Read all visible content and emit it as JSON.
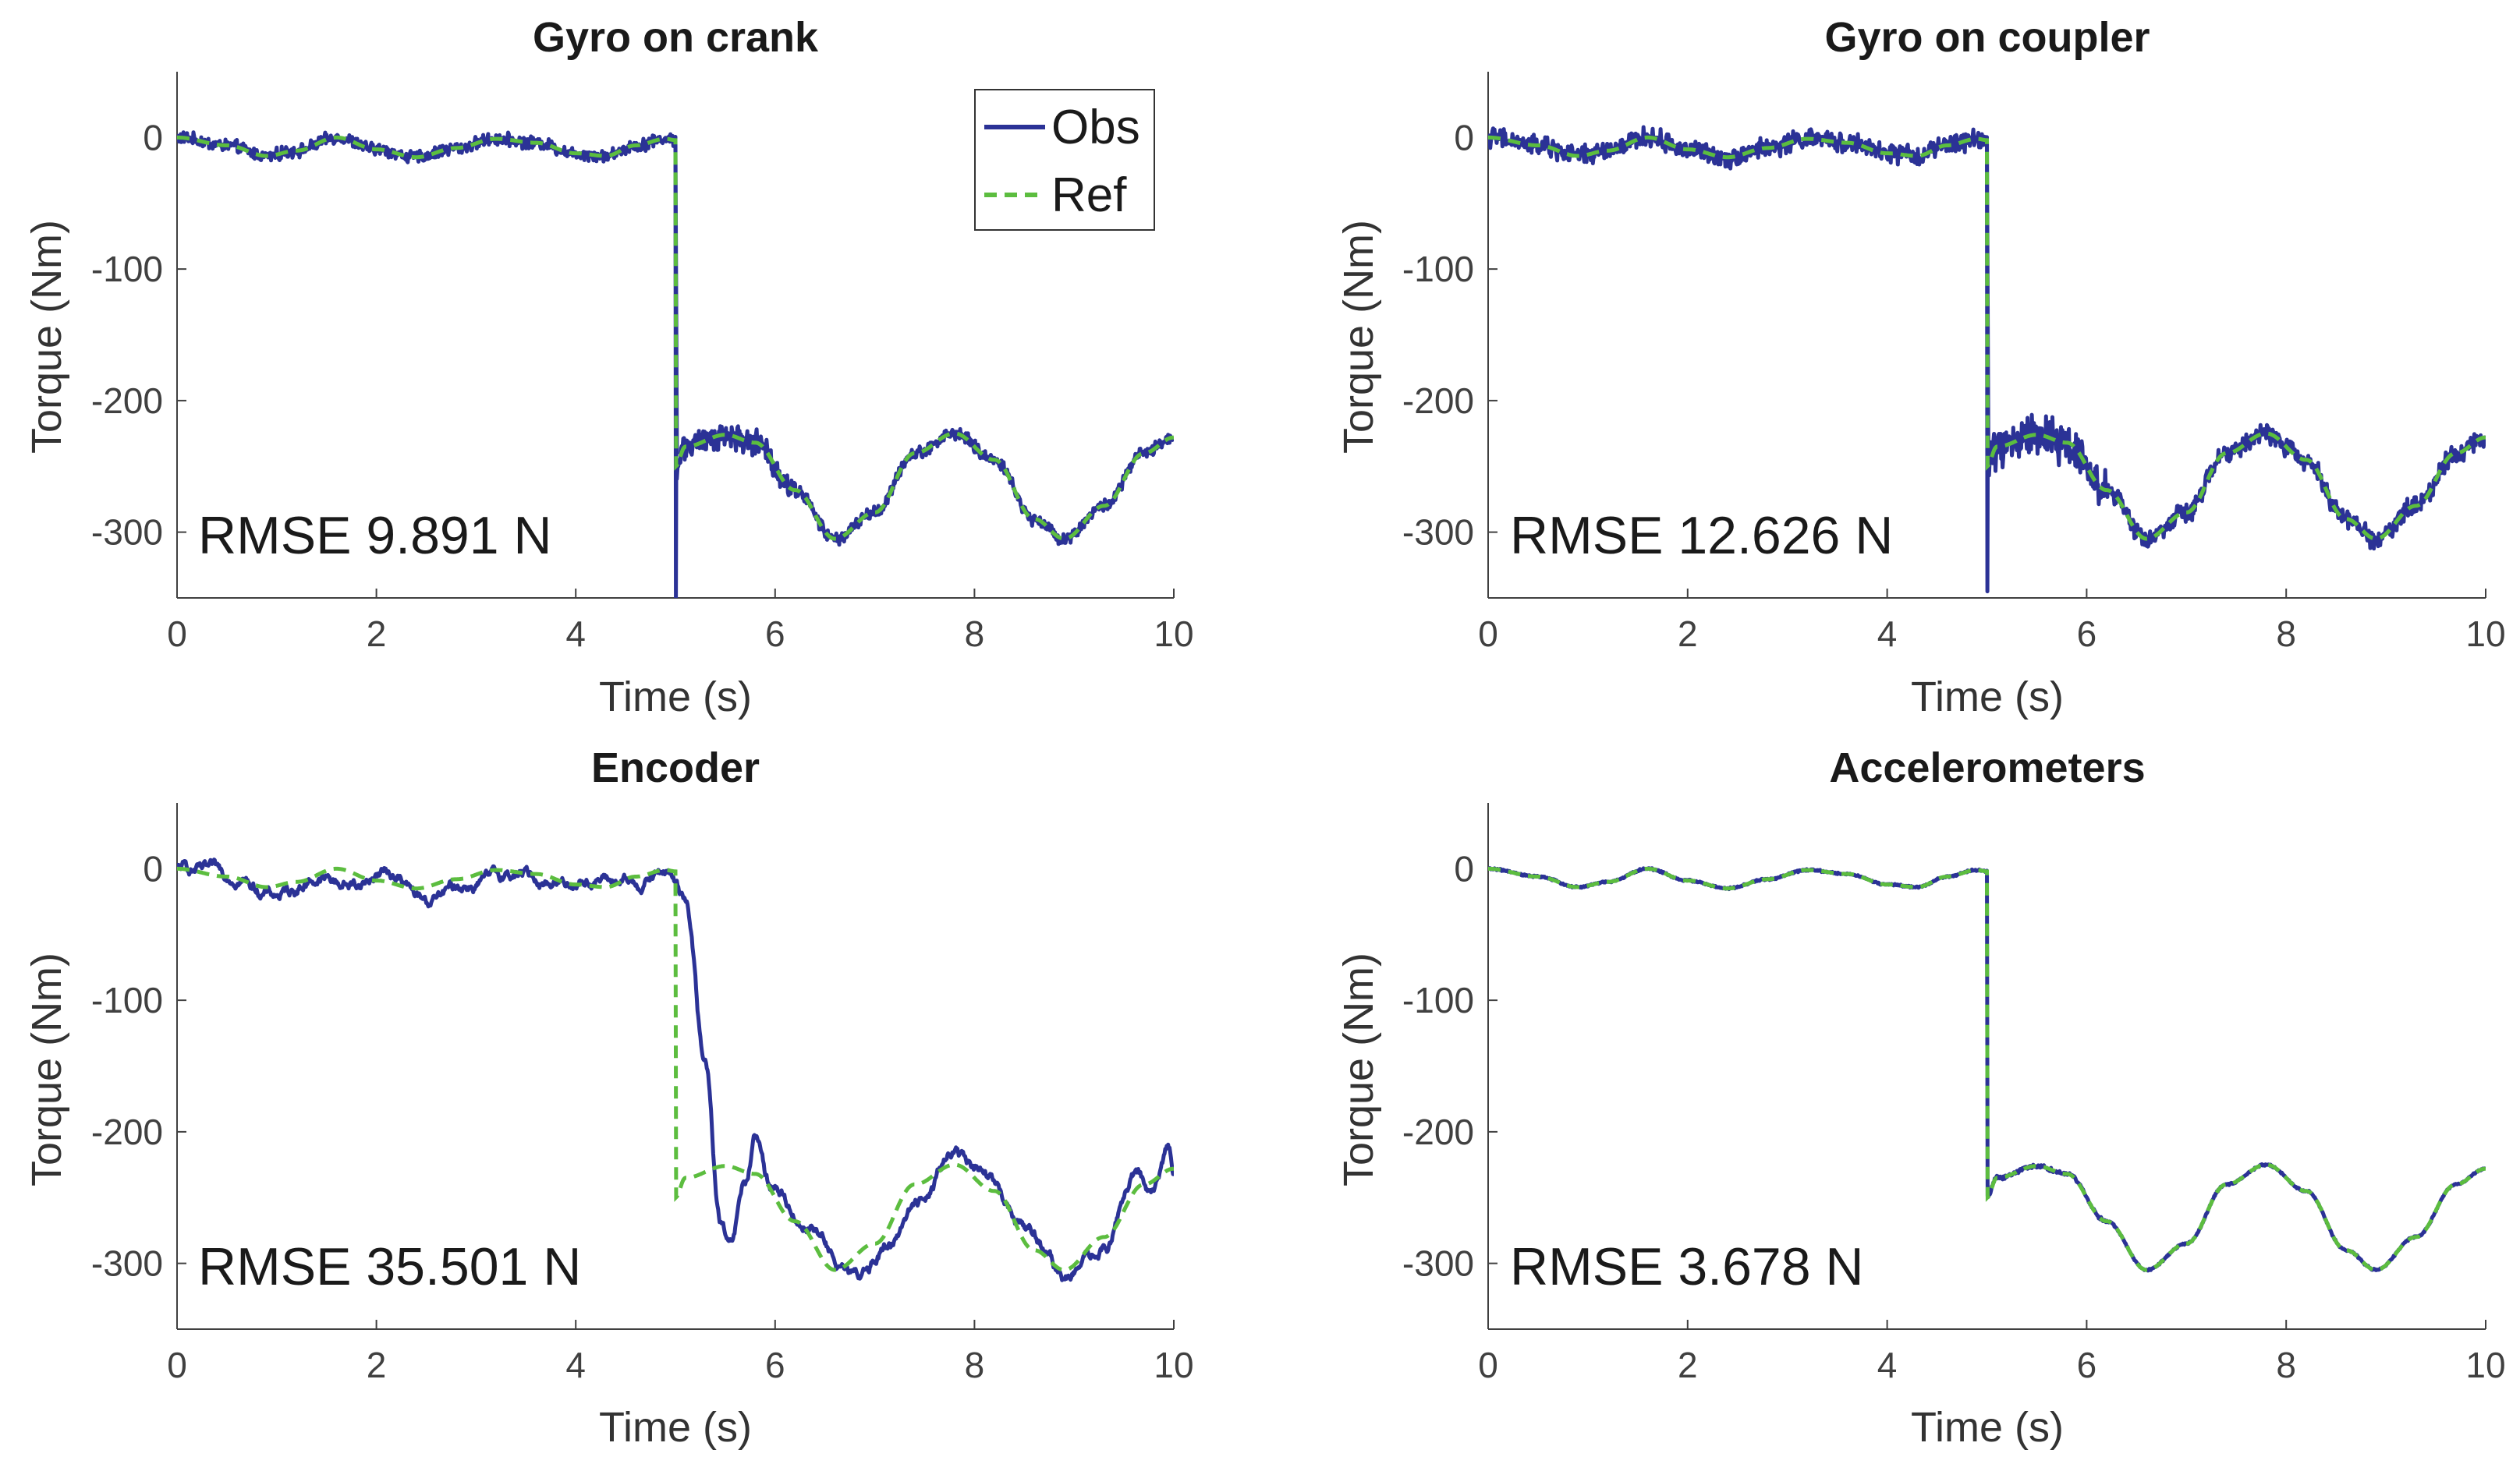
{
  "colors": {
    "obs": "#2b3296",
    "ref": "#5cbd3f",
    "axis": "#404040"
  },
  "legend": {
    "obs_label": "Obs",
    "ref_label": "Ref",
    "location": "top-right of first panel"
  },
  "chart_data": [
    {
      "type": "line",
      "title": "Gyro on crank",
      "xlabel": "Time (s)",
      "ylabel": "Torque (Nm)",
      "xlim": [
        0,
        10
      ],
      "ylim": [
        -350,
        50
      ],
      "xticks": [
        0,
        2,
        4,
        6,
        8,
        10
      ],
      "yticks": [
        0,
        -100,
        -200,
        -300
      ],
      "annotation": "RMSE 9.891 N",
      "noise": 7,
      "spike": -350,
      "lag": 0,
      "drift": 0,
      "series": [
        {
          "name": "Obs",
          "style": "solid"
        },
        {
          "name": "Ref",
          "style": "dashed"
        }
      ],
      "ref_points": [
        [
          0,
          0
        ],
        [
          0.5,
          -6
        ],
        [
          0.9,
          -14
        ],
        [
          1.2,
          -10
        ],
        [
          1.6,
          0
        ],
        [
          2.0,
          -9
        ],
        [
          2.4,
          -15
        ],
        [
          2.8,
          -8
        ],
        [
          3.2,
          -1
        ],
        [
          3.6,
          -4
        ],
        [
          4.0,
          -12
        ],
        [
          4.3,
          -14
        ],
        [
          4.6,
          -6
        ],
        [
          4.9,
          -1
        ],
        [
          5.0,
          -2
        ],
        [
          5.0,
          -250
        ],
        [
          5.1,
          -235
        ],
        [
          5.5,
          -226
        ],
        [
          5.8,
          -232
        ],
        [
          6.2,
          -268
        ],
        [
          6.6,
          -305
        ],
        [
          7.0,
          -285
        ],
        [
          7.4,
          -240
        ],
        [
          7.8,
          -225
        ],
        [
          8.2,
          -245
        ],
        [
          8.6,
          -290
        ],
        [
          8.9,
          -305
        ],
        [
          9.3,
          -280
        ],
        [
          9.7,
          -240
        ],
        [
          10.0,
          -228
        ]
      ]
    },
    {
      "type": "line",
      "title": "Gyro on coupler",
      "xlabel": "Time (s)",
      "ylabel": "Torque (Nm)",
      "xlim": [
        0,
        10
      ],
      "ylim": [
        -350,
        50
      ],
      "xticks": [
        0,
        2,
        4,
        6,
        8,
        10
      ],
      "yticks": [
        0,
        -100,
        -200,
        -300
      ],
      "annotation": "RMSE 12.626 N",
      "noise": 11,
      "spike": -345,
      "lag": 0,
      "drift": 0,
      "series": [
        {
          "name": "Obs",
          "style": "solid"
        },
        {
          "name": "Ref",
          "style": "dashed"
        }
      ],
      "ref_points": [
        [
          0,
          0
        ],
        [
          0.5,
          -6
        ],
        [
          0.9,
          -14
        ],
        [
          1.2,
          -10
        ],
        [
          1.6,
          0
        ],
        [
          2.0,
          -9
        ],
        [
          2.4,
          -15
        ],
        [
          2.8,
          -8
        ],
        [
          3.2,
          -1
        ],
        [
          3.6,
          -4
        ],
        [
          4.0,
          -12
        ],
        [
          4.3,
          -14
        ],
        [
          4.6,
          -6
        ],
        [
          4.9,
          -1
        ],
        [
          5.0,
          -2
        ],
        [
          5.0,
          -250
        ],
        [
          5.1,
          -235
        ],
        [
          5.5,
          -226
        ],
        [
          5.8,
          -232
        ],
        [
          6.2,
          -268
        ],
        [
          6.6,
          -305
        ],
        [
          7.0,
          -285
        ],
        [
          7.4,
          -240
        ],
        [
          7.8,
          -225
        ],
        [
          8.2,
          -245
        ],
        [
          8.6,
          -290
        ],
        [
          8.9,
          -305
        ],
        [
          9.3,
          -280
        ],
        [
          9.7,
          -240
        ],
        [
          10.0,
          -228
        ]
      ]
    },
    {
      "type": "line",
      "title": "Encoder",
      "xlabel": "Time (s)",
      "ylabel": "Torque (Nm)",
      "xlim": [
        0,
        10
      ],
      "ylim": [
        -350,
        50
      ],
      "xticks": [
        0,
        2,
        4,
        6,
        8,
        10
      ],
      "yticks": [
        0,
        -100,
        -200,
        -300
      ],
      "annotation": "RMSE 35.501 N",
      "noise": 5,
      "spike": null,
      "lag": 0.25,
      "drift": 12,
      "series": [
        {
          "name": "Obs",
          "style": "solid"
        },
        {
          "name": "Ref",
          "style": "dashed"
        }
      ],
      "ref_points": [
        [
          0,
          0
        ],
        [
          0.5,
          -6
        ],
        [
          0.9,
          -14
        ],
        [
          1.2,
          -10
        ],
        [
          1.6,
          0
        ],
        [
          2.0,
          -9
        ],
        [
          2.4,
          -15
        ],
        [
          2.8,
          -8
        ],
        [
          3.2,
          -1
        ],
        [
          3.6,
          -4
        ],
        [
          4.0,
          -12
        ],
        [
          4.3,
          -14
        ],
        [
          4.6,
          -6
        ],
        [
          4.9,
          -1
        ],
        [
          5.0,
          -2
        ],
        [
          5.0,
          -250
        ],
        [
          5.1,
          -235
        ],
        [
          5.5,
          -226
        ],
        [
          5.8,
          -232
        ],
        [
          6.2,
          -268
        ],
        [
          6.6,
          -305
        ],
        [
          7.0,
          -285
        ],
        [
          7.4,
          -240
        ],
        [
          7.8,
          -225
        ],
        [
          8.2,
          -245
        ],
        [
          8.6,
          -290
        ],
        [
          8.9,
          -305
        ],
        [
          9.3,
          -280
        ],
        [
          9.7,
          -240
        ],
        [
          10.0,
          -228
        ]
      ],
      "obs_points": [
        [
          0,
          0
        ],
        [
          0.5,
          -4
        ],
        [
          1.0,
          -20
        ],
        [
          1.4,
          -8
        ],
        [
          1.8,
          -12
        ],
        [
          2.1,
          -2
        ],
        [
          2.5,
          -25
        ],
        [
          2.9,
          -12
        ],
        [
          3.4,
          -4
        ],
        [
          3.8,
          -10
        ],
        [
          4.2,
          -8
        ],
        [
          4.6,
          -12
        ],
        [
          4.9,
          -2
        ],
        [
          5.1,
          -20
        ],
        [
          5.3,
          -150
        ],
        [
          5.45,
          -270
        ],
        [
          5.55,
          -290
        ],
        [
          5.7,
          -240
        ],
        [
          5.8,
          -208
        ],
        [
          5.95,
          -240
        ],
        [
          6.3,
          -270
        ],
        [
          6.8,
          -312
        ],
        [
          7.1,
          -290
        ],
        [
          7.4,
          -255
        ],
        [
          7.8,
          -215
        ],
        [
          8.1,
          -235
        ],
        [
          8.5,
          -270
        ],
        [
          8.9,
          -310
        ],
        [
          9.3,
          -290
        ],
        [
          9.6,
          -235
        ],
        [
          9.8,
          -245
        ],
        [
          9.95,
          -212
        ],
        [
          10.0,
          -230
        ]
      ]
    },
    {
      "type": "line",
      "title": "Accelerometers",
      "xlabel": "Time (s)",
      "ylabel": "Torque (Nm)",
      "xlim": [
        0,
        10
      ],
      "ylim": [
        -350,
        50
      ],
      "xticks": [
        0,
        2,
        4,
        6,
        8,
        10
      ],
      "yticks": [
        0,
        -100,
        -200,
        -300
      ],
      "annotation": "RMSE 3.678 N",
      "noise": 1,
      "spike": null,
      "lag": 0,
      "drift": 0,
      "series": [
        {
          "name": "Obs",
          "style": "solid"
        },
        {
          "name": "Ref",
          "style": "dashed"
        }
      ],
      "ref_points": [
        [
          0,
          0
        ],
        [
          0.5,
          -6
        ],
        [
          0.9,
          -14
        ],
        [
          1.2,
          -10
        ],
        [
          1.6,
          0
        ],
        [
          2.0,
          -9
        ],
        [
          2.4,
          -15
        ],
        [
          2.8,
          -8
        ],
        [
          3.2,
          -1
        ],
        [
          3.6,
          -4
        ],
        [
          4.0,
          -12
        ],
        [
          4.3,
          -14
        ],
        [
          4.6,
          -6
        ],
        [
          4.9,
          -1
        ],
        [
          5.0,
          -2
        ],
        [
          5.0,
          -250
        ],
        [
          5.1,
          -235
        ],
        [
          5.5,
          -226
        ],
        [
          5.8,
          -232
        ],
        [
          6.2,
          -268
        ],
        [
          6.6,
          -305
        ],
        [
          7.0,
          -285
        ],
        [
          7.4,
          -240
        ],
        [
          7.8,
          -225
        ],
        [
          8.2,
          -245
        ],
        [
          8.6,
          -290
        ],
        [
          8.9,
          -305
        ],
        [
          9.3,
          -280
        ],
        [
          9.7,
          -240
        ],
        [
          10.0,
          -228
        ]
      ]
    }
  ]
}
